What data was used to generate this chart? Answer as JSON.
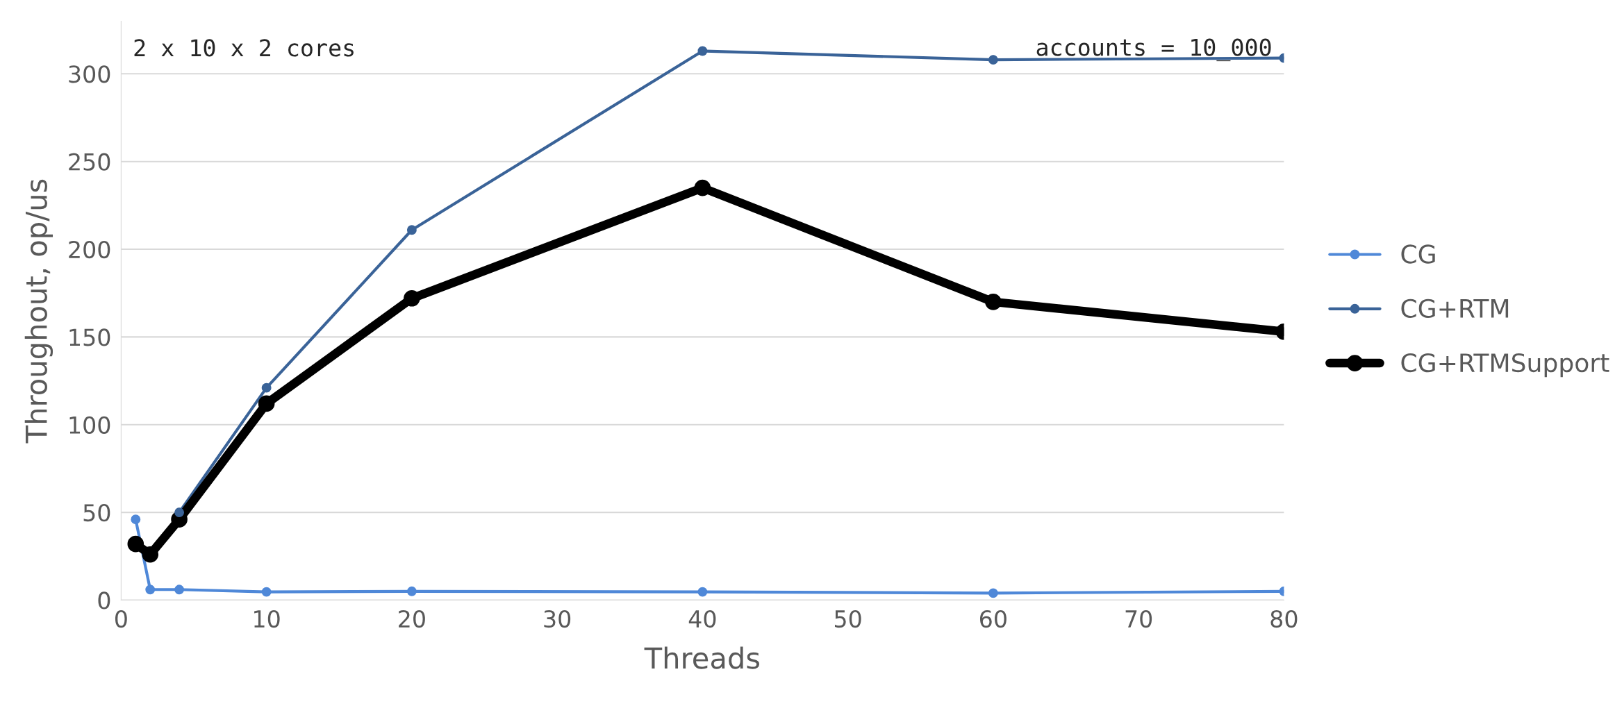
{
  "chart_data": {
    "type": "line",
    "xlabel": "Threads",
    "ylabel": "Throughout, op/us",
    "annotations": [
      "2 x 10 x 2 cores",
      "accounts = 10_000"
    ],
    "x": [
      1,
      2,
      4,
      10,
      20,
      40,
      60,
      80
    ],
    "series": [
      {
        "name": "CG",
        "color": "#4f88d8",
        "values": [
          46,
          6,
          6,
          4.7,
          5,
          4.7,
          4,
          5
        ]
      },
      {
        "name": "CG+RTM",
        "color": "#3a6398",
        "values": [
          null,
          null,
          50,
          121,
          211,
          313,
          308,
          309
        ]
      },
      {
        "name": "CG+RTMSupport",
        "color": "#000000",
        "values": [
          32,
          26,
          46,
          112,
          172,
          235,
          170,
          153
        ]
      }
    ],
    "xlim": [
      0,
      80
    ],
    "xticks": [
      0,
      10,
      20,
      30,
      40,
      50,
      60,
      70,
      80
    ],
    "ylim": [
      0,
      330
    ],
    "yticks": [
      0,
      50,
      100,
      150,
      200,
      250,
      300
    ],
    "grid": "y",
    "legend": "right",
    "marker": "circle",
    "line_style": "solid"
  }
}
